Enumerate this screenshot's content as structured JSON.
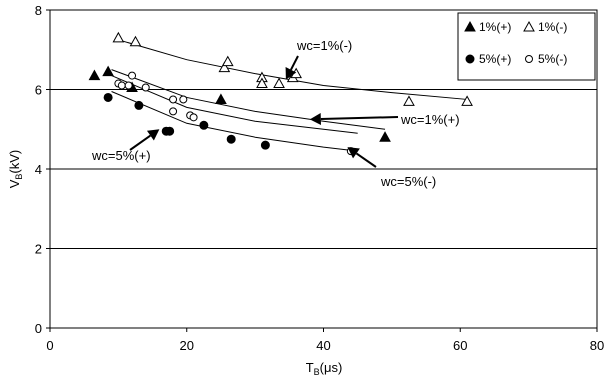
{
  "chart_data": {
    "type": "scatter",
    "title": "",
    "xlabel": "T_B(μs)",
    "xlabel_main": "T",
    "xlabel_sub": "B",
    "xlabel_rest": "(μs)",
    "ylabel": "V_B(kV)",
    "ylabel_main": "V",
    "ylabel_sub": "B",
    "ylabel_rest": "(kV)",
    "xlim": [
      0,
      80
    ],
    "ylim": [
      0,
      8
    ],
    "xticks": [
      0,
      20,
      40,
      60,
      80
    ],
    "yticks": [
      0,
      2,
      4,
      6,
      8
    ],
    "grid": "horizontal",
    "legend_position": "top-right",
    "series": [
      {
        "name": "1%(+)",
        "marker": "filled-triangle",
        "points": [
          [
            6.5,
            6.35
          ],
          [
            8.5,
            6.45
          ],
          [
            12,
            6.05
          ],
          [
            25,
            5.75
          ],
          [
            49,
            4.8
          ]
        ]
      },
      {
        "name": "1%(-)",
        "marker": "open-triangle",
        "points": [
          [
            10,
            7.3
          ],
          [
            12.5,
            7.2
          ],
          [
            25.5,
            6.55
          ],
          [
            26,
            6.7
          ],
          [
            31,
            6.3
          ],
          [
            31,
            6.15
          ],
          [
            33.5,
            6.15
          ],
          [
            35.5,
            6.3
          ],
          [
            36,
            6.4
          ],
          [
            52.5,
            5.7
          ],
          [
            61,
            5.7
          ]
        ]
      },
      {
        "name": "5%(+)",
        "marker": "filled-circle",
        "points": [
          [
            8.5,
            5.8
          ],
          [
            13,
            5.6
          ],
          [
            17,
            4.95
          ],
          [
            17.5,
            4.95
          ],
          [
            22.5,
            5.1
          ],
          [
            26.5,
            4.75
          ],
          [
            31.5,
            4.6
          ]
        ]
      },
      {
        "name": "5%(-)",
        "marker": "open-circle",
        "points": [
          [
            10,
            6.15
          ],
          [
            10.5,
            6.1
          ],
          [
            11.5,
            6.1
          ],
          [
            12,
            6.35
          ],
          [
            14,
            6.05
          ],
          [
            18,
            5.75
          ],
          [
            18,
            5.45
          ],
          [
            19.5,
            5.75
          ],
          [
            20.5,
            5.35
          ],
          [
            21,
            5.3
          ],
          [
            44,
            4.45
          ]
        ]
      }
    ],
    "fit_curves": [
      {
        "label": "wc=1%(-)",
        "x": [
          10,
          20,
          30,
          40,
          50,
          61
        ],
        "y": [
          7.25,
          6.75,
          6.4,
          6.1,
          5.92,
          5.75
        ]
      },
      {
        "label": "wc=1%(+)",
        "x": [
          9,
          20,
          30,
          40,
          49
        ],
        "y": [
          6.5,
          5.8,
          5.45,
          5.2,
          5.0
        ]
      },
      {
        "label": "wc=5%(+)",
        "x": [
          9,
          20,
          30,
          40,
          45
        ],
        "y": [
          6.35,
          5.55,
          5.2,
          5.0,
          4.9
        ]
      },
      {
        "label": "wc=5%(-)",
        "x": [
          9,
          20,
          30,
          40,
          45
        ],
        "y": [
          5.95,
          5.15,
          4.8,
          4.55,
          4.45
        ]
      }
    ],
    "annotations": [
      {
        "text": "wc=1%(-)",
        "arrow_to": [
          34.5,
          6.25
        ]
      },
      {
        "text": "wc=1%(+)",
        "arrow_to": [
          38,
          5.25
        ]
      },
      {
        "text": "wc=5%(+)",
        "arrow_to": [
          16,
          5.0
        ]
      },
      {
        "text": "wc=5%(-)",
        "arrow_to": [
          43.5,
          4.55
        ]
      }
    ]
  }
}
